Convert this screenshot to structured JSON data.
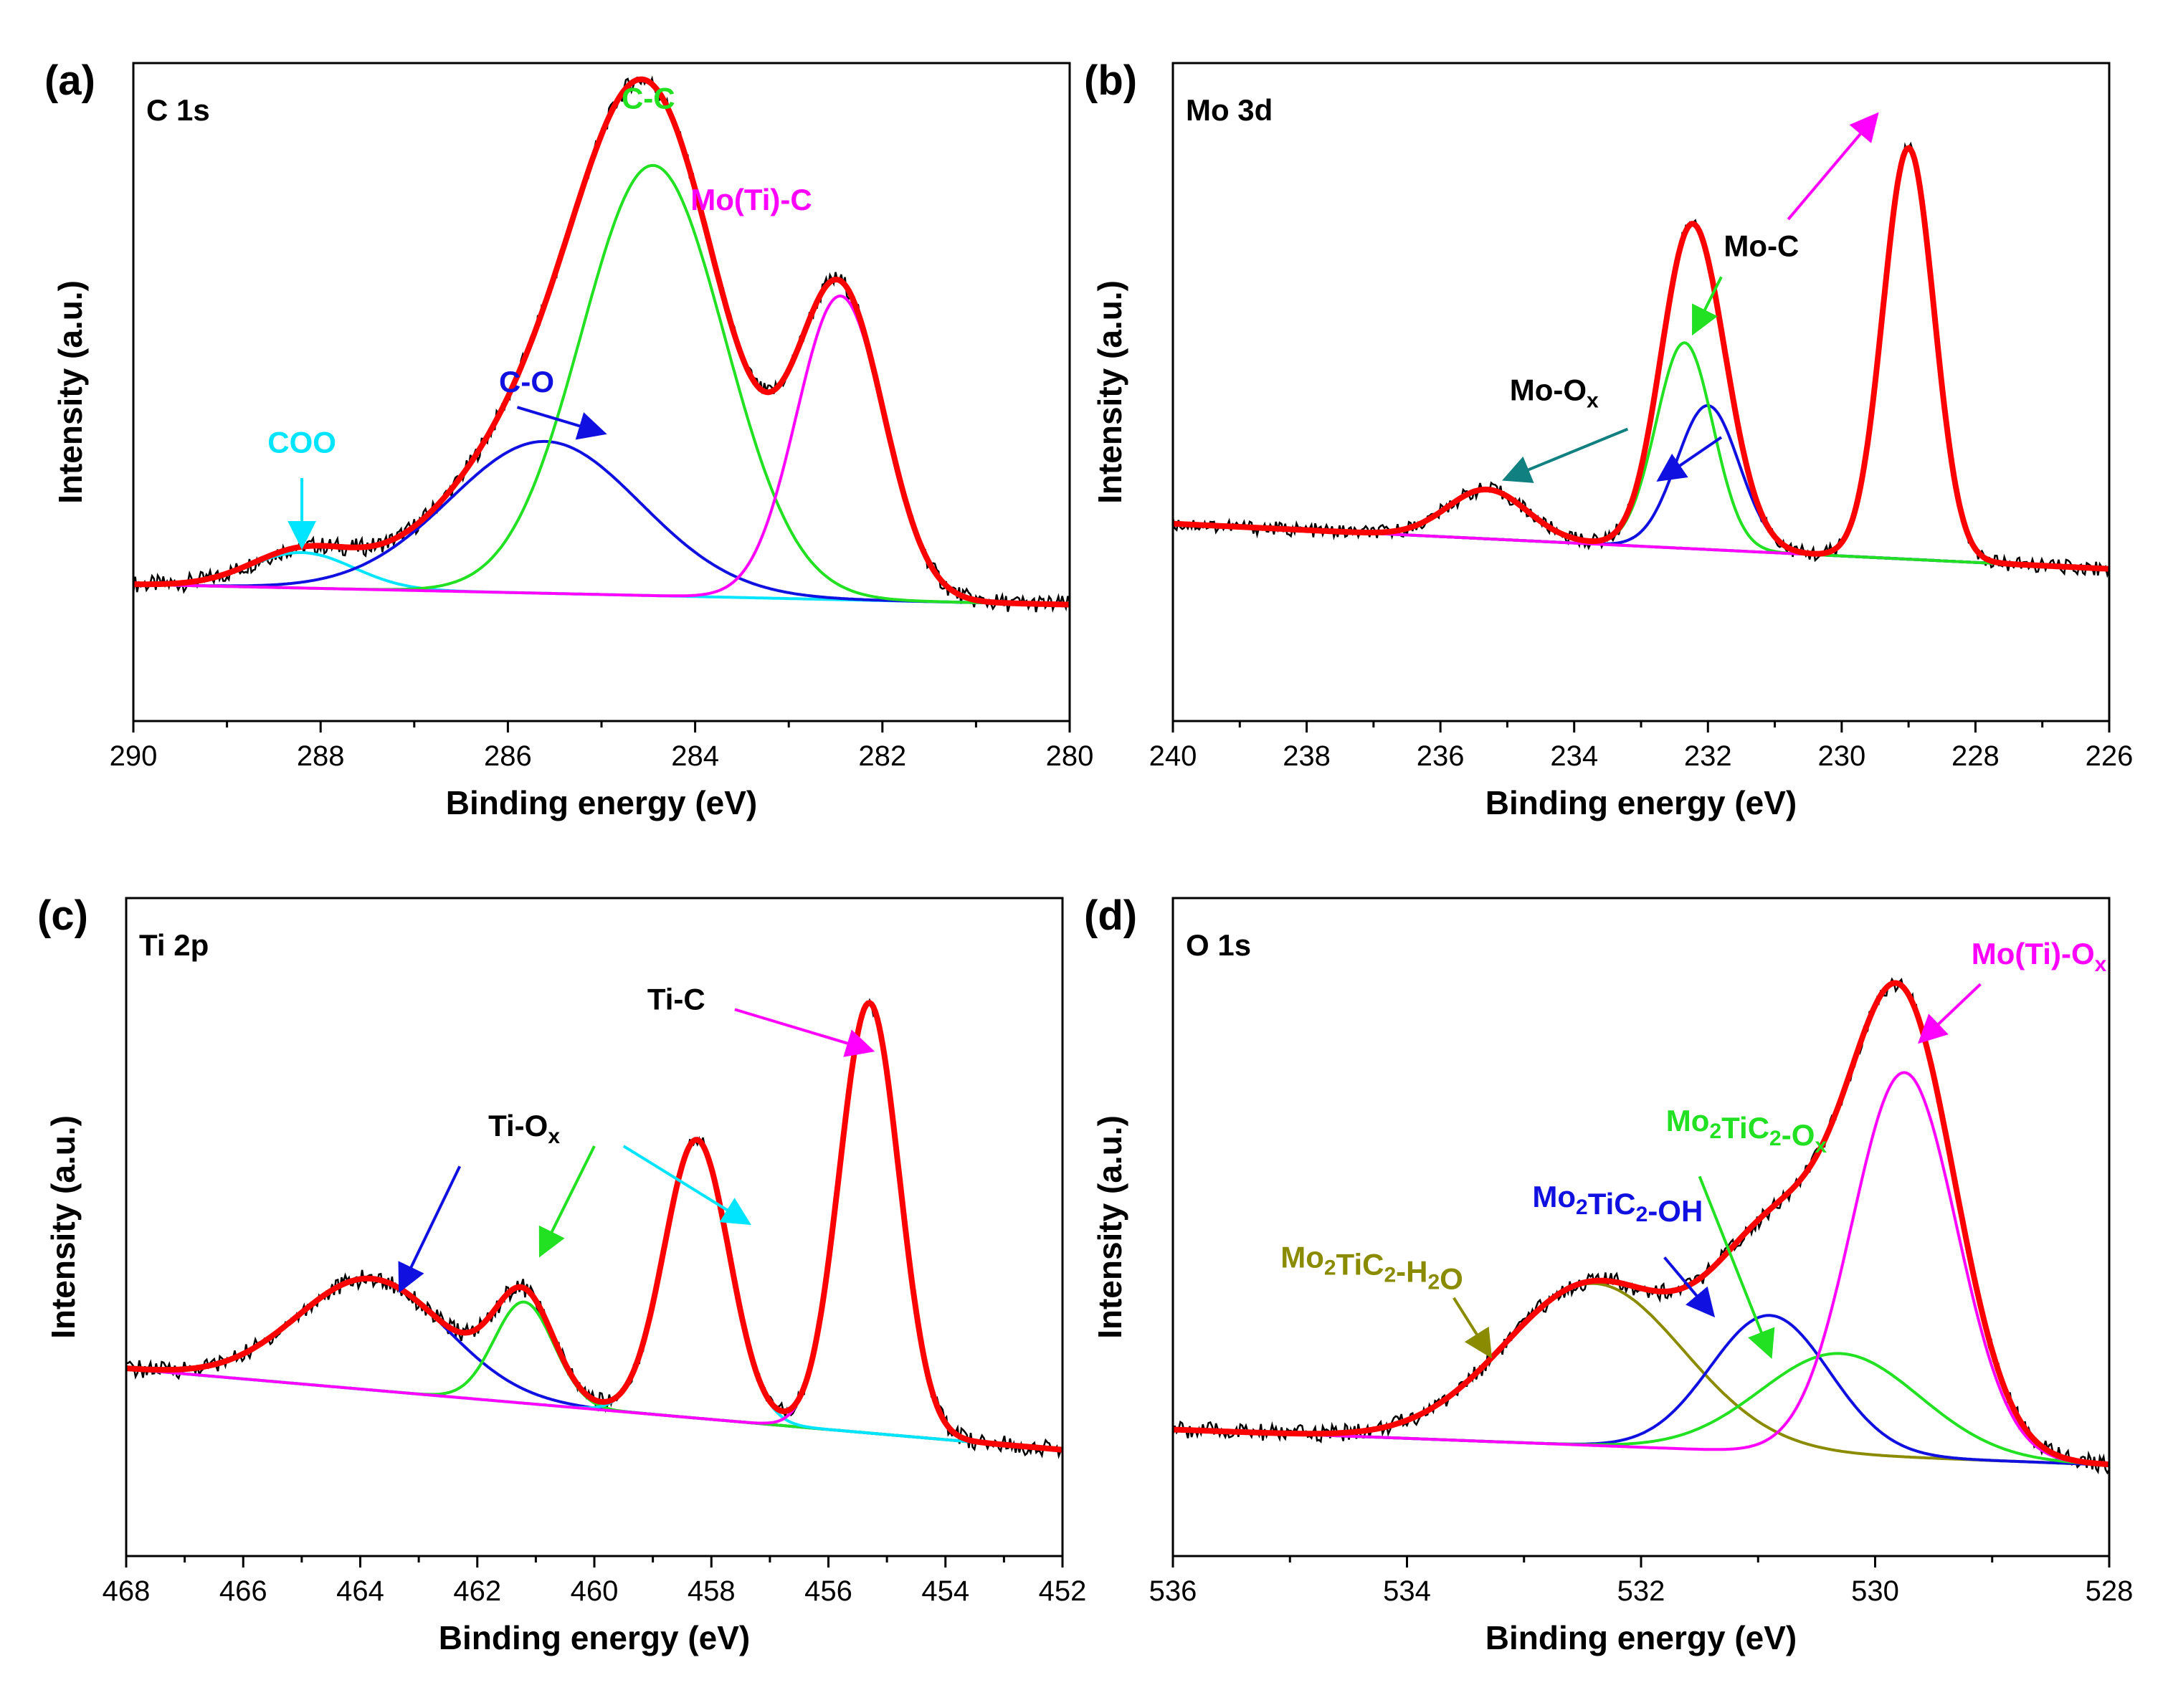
{
  "chart_data": [
    {
      "type": "line",
      "panel": "(a)",
      "region": "C 1s",
      "xlabel": "Binding energy (eV)",
      "ylabel": "Intensity (a.u.)",
      "xlim": [
        290,
        280
      ],
      "xticks": [
        "290",
        "288",
        "286",
        "284",
        "282",
        "280"
      ],
      "ylim": [
        -0.15,
        1.15
      ],
      "grid": false,
      "background": {
        "x": [
          290,
          280
        ],
        "y": [
          0.12,
          0.08
        ]
      },
      "components": [
        {
          "name": "COO",
          "color": "#00e5ff",
          "center": 288.2,
          "height": 0.07,
          "fwhm": 1.3
        },
        {
          "name": "C-O",
          "color": "#1010e0",
          "center": 285.6,
          "height": 0.3,
          "fwhm": 2.4
        },
        {
          "name": "C-C",
          "color": "#22e022",
          "center": 284.45,
          "height": 0.85,
          "fwhm": 1.8
        },
        {
          "name": "Mo(Ti)-C",
          "color": "#ff00ff",
          "center": 282.45,
          "height": 0.6,
          "fwhm": 1.1
        }
      ],
      "envelope_color": "#ff0000",
      "raw_color": "#000000",
      "annotations": [
        {
          "text": "COO",
          "sub": "",
          "color": "#00e5ff",
          "text_at": [
            288.2,
            0.38
          ],
          "arrow": [
            [
              288.2,
              0.33
            ],
            [
              288.2,
              0.2
            ]
          ]
        },
        {
          "text": "C-O",
          "sub": "",
          "color": "#1010e0",
          "text_at": [
            285.8,
            0.5
          ],
          "arrow": [
            [
              285.9,
              0.47
            ],
            [
              285.0,
              0.42
            ]
          ]
        },
        {
          "text": "C-C",
          "sub": "",
          "color": "#22e022",
          "text_at": [
            284.5,
            1.06
          ],
          "arrow": []
        },
        {
          "text": "Mo(Ti)-C",
          "sub": "",
          "color": "#ff00ff",
          "text_at": [
            283.4,
            0.86
          ],
          "arrow": []
        }
      ]
    },
    {
      "type": "line",
      "panel": "(b)",
      "region": "Mo 3d",
      "xlabel": "Binding energy (eV)",
      "ylabel": "Intensity (a.u.)",
      "xlim": [
        240,
        226
      ],
      "xticks": [
        "240",
        "238",
        "236",
        "234",
        "232",
        "230",
        "228",
        "226"
      ],
      "ylim": [
        -0.35,
        1.25
      ],
      "grid": false,
      "background": {
        "x": [
          240,
          226
        ],
        "y": [
          0.13,
          0.02
        ]
      },
      "components": [
        {
          "name": "Mo-Ox",
          "color": "#108080",
          "center": 235.3,
          "height": 0.12,
          "fwhm": 1.4
        },
        {
          "name": "Mo-Ox",
          "color": "#1010e0",
          "center": 232.0,
          "height": 0.35,
          "fwhm": 1.1
        },
        {
          "name": "Mo-C",
          "color": "#22e022",
          "center": 232.35,
          "height": 0.5,
          "fwhm": 1.0
        },
        {
          "name": "Mo-C",
          "color": "#ff00ff",
          "center": 229.0,
          "height": 1.0,
          "fwhm": 0.9
        }
      ],
      "envelope_color": "#ff0000",
      "raw_color": "#000000",
      "annotations": [
        {
          "text": "Mo-O",
          "sub": "x",
          "color": "#000000",
          "text_at": [
            234.3,
            0.43
          ],
          "arrow": []
        },
        {
          "text": "Mo-C",
          "sub": "",
          "color": "#000000",
          "text_at": [
            231.2,
            0.78
          ],
          "arrow": []
        }
      ],
      "arrows": [
        {
          "color": "#108080",
          "from": [
            233.2,
            0.36
          ],
          "to": [
            235.0,
            0.24
          ]
        },
        {
          "color": "#1010e0",
          "from": [
            231.8,
            0.34
          ],
          "to": [
            232.7,
            0.24
          ]
        },
        {
          "color": "#22e022",
          "from": [
            231.8,
            0.73
          ],
          "to": [
            232.2,
            0.6
          ]
        },
        {
          "color": "#ff00ff",
          "from": [
            230.8,
            0.87
          ],
          "to": [
            229.5,
            1.12
          ]
        }
      ]
    },
    {
      "type": "line",
      "panel": "(c)",
      "region": "Ti 2p",
      "xlabel": "Binding energy (eV)",
      "ylabel": "Intensity (a.u.)",
      "xlim": [
        468,
        452
      ],
      "xticks": [
        "468",
        "466",
        "464",
        "462",
        "460",
        "458",
        "456",
        "454",
        "452"
      ],
      "ylim": [
        -0.15,
        1.15
      ],
      "grid": false,
      "background": {
        "x": [
          468,
          452
        ],
        "y": [
          0.22,
          0.06
        ]
      },
      "components": [
        {
          "name": "Ti-Ox",
          "color": "#1010e0",
          "center": 463.8,
          "height": 0.22,
          "fwhm": 3.0
        },
        {
          "name": "Ti-Ox",
          "color": "#22e022",
          "center": 461.2,
          "height": 0.2,
          "fwhm": 1.2
        },
        {
          "name": "Ti-Ox",
          "color": "#00e5ff",
          "center": 458.25,
          "height": 0.55,
          "fwhm": 1.3
        },
        {
          "name": "Ti-C",
          "color": "#ff00ff",
          "center": 455.3,
          "height": 0.85,
          "fwhm": 1.2
        }
      ],
      "envelope_color": "#ff0000",
      "raw_color": "#000000",
      "annotations": [
        {
          "text": "Ti-O",
          "sub": "x",
          "color": "#000000",
          "text_at": [
            461.2,
            0.68
          ],
          "arrow": []
        },
        {
          "text": "Ti-C",
          "sub": "",
          "color": "#000000",
          "text_at": [
            458.6,
            0.93
          ],
          "arrow": []
        }
      ],
      "arrows": [
        {
          "color": "#1010e0",
          "from": [
            462.3,
            0.62
          ],
          "to": [
            463.3,
            0.38
          ]
        },
        {
          "color": "#22e022",
          "from": [
            460.0,
            0.66
          ],
          "to": [
            460.9,
            0.45
          ]
        },
        {
          "color": "#00e5ff",
          "from": [
            459.5,
            0.66
          ],
          "to": [
            457.4,
            0.51
          ]
        },
        {
          "color": "#ff00ff",
          "from": [
            457.6,
            0.93
          ],
          "to": [
            455.3,
            0.85
          ]
        }
      ]
    },
    {
      "type": "line",
      "panel": "(d)",
      "region": "O 1s",
      "xlabel": "Binding energy (eV)",
      "ylabel": "Intensity (a.u.)",
      "xlim": [
        536,
        528
      ],
      "xticks": [
        "536",
        "534",
        "532",
        "530",
        "528"
      ],
      "ylim": [
        -0.15,
        1.15
      ],
      "grid": false,
      "background": {
        "x": [
          536,
          528
        ],
        "y": [
          0.1,
          0.03
        ]
      },
      "components": [
        {
          "name": "Mo2TiC2-H2O",
          "color": "#8b8b00",
          "center": 532.4,
          "height": 0.32,
          "fwhm": 1.8
        },
        {
          "name": "Mo2TiC2-OH",
          "color": "#1010e0",
          "center": 530.9,
          "height": 0.27,
          "fwhm": 1.2
        },
        {
          "name": "Mo2TiC2-Ox",
          "color": "#22e022",
          "center": 530.3,
          "height": 0.2,
          "fwhm": 1.6
        },
        {
          "name": "Mo(Ti)-Ox",
          "color": "#ff00ff",
          "center": 529.75,
          "height": 0.76,
          "fwhm": 1.05
        }
      ],
      "envelope_color": "#ff0000",
      "raw_color": "#000000",
      "annotations": [
        {
          "text": "Mo",
          "sub": "2",
          "tail": "TiC",
          "sub2": "2",
          "tail2": "-H",
          "sub3": "2",
          "tail3": "O",
          "color": "#8b8b00",
          "text_at": [
            534.3,
            0.42
          ],
          "arrow": []
        },
        {
          "text": "Mo",
          "sub": "2",
          "tail": "TiC",
          "sub2": "2",
          "tail2": "-OH",
          "sub3": "",
          "tail3": "",
          "color": "#1010e0",
          "text_at": [
            532.2,
            0.54
          ],
          "arrow": []
        },
        {
          "text": "Mo",
          "sub": "2",
          "tail": "TiC",
          "sub2": "2",
          "tail2": "-O",
          "sub3": "x",
          "tail3": "",
          "color": "#22e022",
          "text_at": [
            531.1,
            0.69
          ],
          "arrow": []
        },
        {
          "text": "Mo(Ti)-O",
          "sub": "x",
          "color": "#ff00ff",
          "text_at": [
            528.6,
            1.02
          ],
          "arrow": []
        }
      ],
      "arrows": [
        {
          "color": "#8b8b00",
          "from": [
            533.6,
            0.36
          ],
          "to": [
            533.3,
            0.25
          ]
        },
        {
          "color": "#1010e0",
          "from": [
            531.8,
            0.44
          ],
          "to": [
            531.4,
            0.33
          ]
        },
        {
          "color": "#22e022",
          "from": [
            531.5,
            0.6
          ],
          "to": [
            530.9,
            0.25
          ]
        },
        {
          "color": "#ff00ff",
          "from": [
            529.1,
            0.98
          ],
          "to": [
            529.6,
            0.87
          ]
        }
      ]
    }
  ]
}
